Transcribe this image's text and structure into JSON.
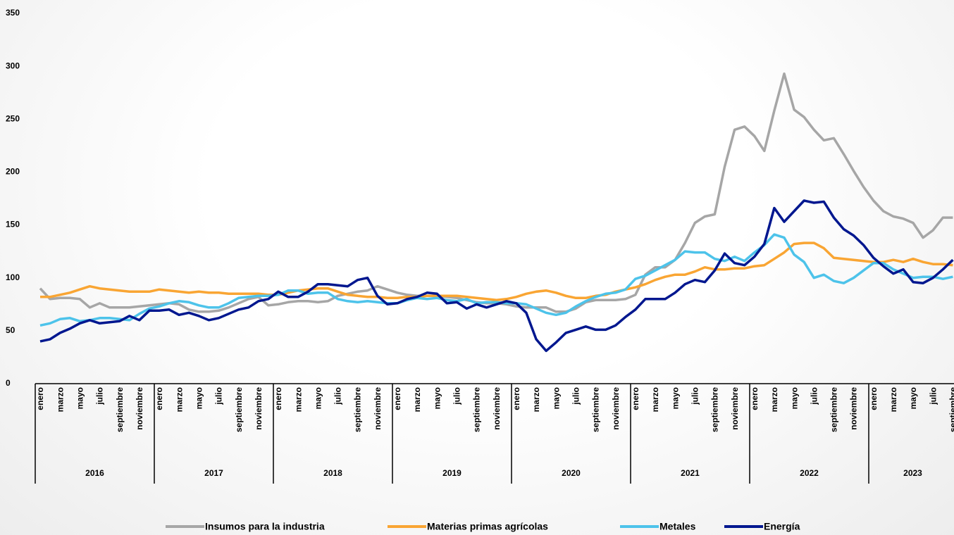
{
  "chart_data": {
    "type": "line",
    "categories": [
      "enero",
      null,
      "marzo",
      null,
      "mayo",
      null,
      "julio",
      null,
      "septiembre",
      null,
      "noviembre",
      null,
      "enero",
      null,
      "marzo",
      null,
      "mayo",
      null,
      "julio",
      null,
      "septiembre",
      null,
      "noviembre",
      null,
      "enero",
      null,
      "marzo",
      null,
      "mayo",
      null,
      "julio",
      null,
      "septiembre",
      null,
      "noviembre",
      null,
      "enero",
      null,
      "marzo",
      null,
      "mayo",
      null,
      "julio",
      null,
      "septiembre",
      null,
      "noviembre",
      null,
      "enero",
      null,
      "marzo",
      null,
      "mayo",
      null,
      "julio",
      null,
      "septiembre",
      null,
      "noviembre",
      null,
      "enero",
      null,
      "marzo",
      null,
      "mayo",
      null,
      "julio",
      null,
      "septiembre",
      null,
      "noviembre",
      null,
      "enero",
      null,
      "marzo",
      null,
      "mayo",
      null,
      "julio",
      null,
      "septiembre",
      null,
      "noviembre",
      null,
      "enero",
      null,
      "marzo",
      null,
      "mayo",
      null,
      "julio",
      null,
      "septiembre"
    ],
    "years": [
      "2016",
      "2017",
      "2018",
      "2019",
      "2020",
      "2021",
      "2022",
      "2023"
    ],
    "ylim": [
      0,
      350
    ],
    "yticks": [
      0,
      50,
      100,
      150,
      200,
      250,
      300,
      350
    ],
    "series": [
      {
        "name": "Insumos para la industria",
        "color": "#a6a6a6",
        "values": [
          90,
          80,
          81,
          81,
          80,
          72,
          76,
          72,
          72,
          72,
          73,
          74,
          75,
          76,
          75,
          70,
          68,
          68,
          69,
          72,
          76,
          80,
          82,
          74,
          75,
          77,
          78,
          78,
          77,
          78,
          83,
          85,
          87,
          88,
          92,
          89,
          86,
          84,
          83,
          83,
          83,
          82,
          81,
          79,
          77,
          76,
          76,
          75,
          73,
          72,
          72,
          72,
          68,
          68,
          71,
          77,
          79,
          79,
          79,
          80,
          84,
          103,
          110,
          110,
          117,
          133,
          152,
          158,
          160,
          205,
          240,
          243,
          234,
          220,
          258,
          293,
          259,
          252,
          240,
          230,
          232,
          217,
          201,
          186,
          173,
          163,
          158,
          156,
          152,
          138,
          145,
          157,
          157
        ]
      },
      {
        "name": "Materias primas agrícolas",
        "color": "#f9a533",
        "values": [
          82,
          82,
          84,
          86,
          89,
          92,
          90,
          89,
          88,
          87,
          87,
          87,
          89,
          88,
          87,
          86,
          87,
          86,
          86,
          85,
          85,
          85,
          85,
          84,
          84,
          86,
          88,
          89,
          90,
          90,
          87,
          84,
          83,
          82,
          82,
          81,
          81,
          82,
          82,
          83,
          83,
          83,
          83,
          82,
          81,
          80,
          79,
          80,
          82,
          85,
          87,
          88,
          86,
          83,
          81,
          81,
          83,
          84,
          87,
          89,
          91,
          94,
          98,
          101,
          103,
          103,
          106,
          110,
          108,
          108,
          109,
          109,
          111,
          112,
          118,
          124,
          132,
          133,
          133,
          128,
          119,
          118,
          117,
          116,
          115,
          115,
          117,
          115,
          118,
          115,
          113,
          113,
          112
        ]
      },
      {
        "name": "Metales",
        "color": "#4dc3ea",
        "values": [
          55,
          57,
          61,
          62,
          59,
          60,
          62,
          62,
          61,
          60,
          66,
          71,
          73,
          76,
          78,
          77,
          74,
          72,
          72,
          76,
          81,
          82,
          83,
          83,
          84,
          88,
          88,
          85,
          86,
          86,
          80,
          78,
          77,
          78,
          77,
          76,
          76,
          79,
          81,
          80,
          81,
          79,
          78,
          80,
          76,
          77,
          77,
          76,
          76,
          75,
          71,
          67,
          65,
          67,
          73,
          78,
          82,
          85,
          86,
          89,
          99,
          102,
          107,
          112,
          117,
          125,
          124,
          124,
          118,
          116,
          120,
          116,
          124,
          131,
          141,
          138,
          122,
          115,
          100,
          103,
          97,
          95,
          100,
          107,
          114,
          114,
          108,
          104,
          100,
          101,
          101,
          99,
          101
        ]
      },
      {
        "name": "Energía",
        "color": "#00178f",
        "values": [
          40,
          42,
          48,
          52,
          57,
          60,
          57,
          58,
          59,
          64,
          60,
          69,
          69,
          70,
          65,
          67,
          64,
          60,
          62,
          66,
          70,
          72,
          78,
          80,
          87,
          82,
          82,
          87,
          94,
          94,
          93,
          92,
          98,
          100,
          83,
          75,
          76,
          80,
          82,
          86,
          85,
          76,
          77,
          71,
          75,
          72,
          75,
          78,
          76,
          67,
          42,
          31,
          39,
          48,
          51,
          54,
          51,
          51,
          55,
          63,
          70,
          80,
          80,
          80,
          86,
          94,
          98,
          96,
          107,
          123,
          114,
          112,
          120,
          132,
          166,
          153,
          163,
          173,
          171,
          172,
          157,
          146,
          140,
          131,
          119,
          111,
          104,
          108,
          96,
          95,
          100,
          108,
          117
        ]
      }
    ]
  }
}
